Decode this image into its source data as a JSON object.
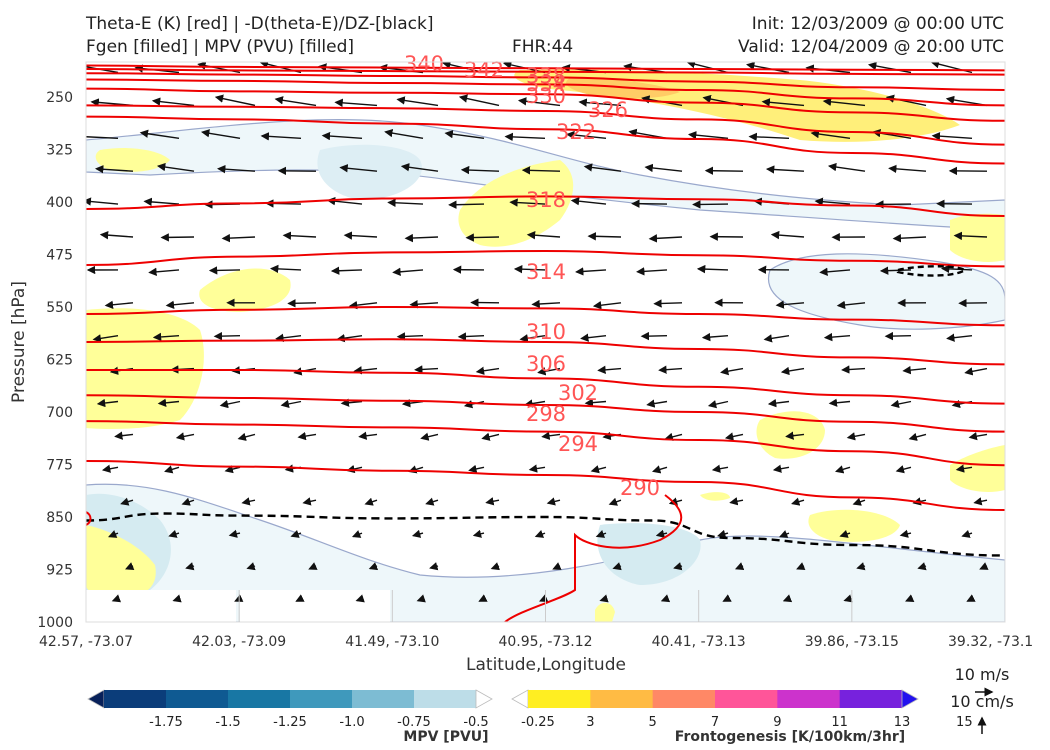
{
  "header": {
    "title_line1": "Theta-E (K) [red] | -D(theta-E)/DZ-[black]",
    "title_line2": "Fgen [filled] | MPV (PVU) [filled]",
    "fhr": "FHR:44",
    "init": "Init: 12/03/2009 @ 00:00 UTC",
    "valid": "Valid: 12/04/2009 @ 20:00 UTC"
  },
  "chart_data": {
    "type": "cross-section",
    "xlabel": "Latitude,Longitude",
    "ylabel": "Pressure [hPa]",
    "x_ticks": [
      "42.57, -73.07",
      "42.03, -73.09",
      "41.49, -73.10",
      "40.95, -73.12",
      "40.41, -73.13",
      "39.86, -73.15",
      "39.32, -73.1"
    ],
    "y_ticks": [
      250,
      325,
      400,
      475,
      550,
      625,
      700,
      775,
      850,
      925,
      1000
    ],
    "ylim": [
      1000,
      200
    ],
    "theta_e_contours": [
      {
        "label": "340",
        "pts": [
          [
            0,
            205
          ],
          [
            1,
            207
          ],
          [
            2,
            208
          ],
          [
            3,
            209
          ],
          [
            4,
            210
          ],
          [
            5,
            211
          ],
          [
            6,
            212
          ]
        ]
      },
      {
        "label": "342",
        "pts": [
          [
            0,
            210
          ],
          [
            1,
            212
          ],
          [
            2,
            213
          ],
          [
            3,
            214
          ],
          [
            4,
            215
          ],
          [
            5,
            217
          ],
          [
            6,
            218
          ]
        ]
      },
      {
        "label": "338",
        "pts": [
          [
            0,
            216
          ],
          [
            1,
            218
          ],
          [
            2,
            220
          ],
          [
            3,
            222
          ],
          [
            4,
            228
          ],
          [
            5,
            236
          ],
          [
            6,
            240
          ]
        ]
      },
      {
        "label": "334",
        "pts": [
          [
            0,
            225
          ],
          [
            1,
            227
          ],
          [
            2,
            230
          ],
          [
            3,
            232
          ],
          [
            4,
            240
          ],
          [
            5,
            252
          ],
          [
            6,
            262
          ]
        ]
      },
      {
        "label": "330",
        "pts": [
          [
            0,
            238
          ],
          [
            1,
            242
          ],
          [
            2,
            244
          ],
          [
            3,
            246
          ],
          [
            4,
            258
          ],
          [
            5,
            272
          ],
          [
            6,
            284
          ]
        ]
      },
      {
        "label": "326",
        "pts": [
          [
            0,
            262
          ],
          [
            1,
            264
          ],
          [
            2,
            266
          ],
          [
            3,
            270
          ],
          [
            4,
            282
          ],
          [
            5,
            300
          ],
          [
            6,
            318
          ]
        ]
      },
      {
        "label": "322",
        "pts": [
          [
            0,
            278
          ],
          [
            1,
            282
          ],
          [
            2,
            288
          ],
          [
            3,
            296
          ],
          [
            4,
            310
          ],
          [
            5,
            330
          ],
          [
            6,
            345
          ]
        ]
      },
      {
        "label": "318",
        "pts": [
          [
            0,
            410
          ],
          [
            1,
            402
          ],
          [
            2,
            395
          ],
          [
            3,
            392
          ],
          [
            4,
            396
          ],
          [
            5,
            405
          ],
          [
            6,
            420
          ]
        ]
      },
      {
        "label": "314",
        "pts": [
          [
            0,
            490
          ],
          [
            1,
            478
          ],
          [
            2,
            472
          ],
          [
            3,
            470
          ],
          [
            4,
            476
          ],
          [
            5,
            484
          ],
          [
            6,
            492
          ]
        ]
      },
      {
        "label": "310",
        "pts": [
          [
            0,
            560
          ],
          [
            1,
            554
          ],
          [
            2,
            550
          ],
          [
            3,
            552
          ],
          [
            4,
            560
          ],
          [
            5,
            568
          ],
          [
            6,
            576
          ]
        ]
      },
      {
        "label": "306",
        "pts": [
          [
            0,
            600
          ],
          [
            1,
            598
          ],
          [
            2,
            596
          ],
          [
            3,
            600
          ],
          [
            4,
            610
          ],
          [
            5,
            622
          ],
          [
            6,
            632
          ]
        ]
      },
      {
        "label": "302",
        "pts": [
          [
            0,
            640
          ],
          [
            1,
            640
          ],
          [
            2,
            644
          ],
          [
            3,
            652
          ],
          [
            4,
            664
          ],
          [
            5,
            676
          ],
          [
            6,
            688
          ]
        ]
      },
      {
        "label": "298",
        "pts": [
          [
            0,
            676
          ],
          [
            1,
            680
          ],
          [
            2,
            684
          ],
          [
            3,
            690
          ],
          [
            4,
            700
          ],
          [
            5,
            714
          ],
          [
            6,
            728
          ]
        ]
      },
      {
        "label": "294",
        "pts": [
          [
            0,
            713
          ],
          [
            1,
            718
          ],
          [
            2,
            722
          ],
          [
            3,
            728
          ],
          [
            4,
            740
          ],
          [
            5,
            756
          ],
          [
            6,
            776
          ]
        ]
      },
      {
        "label": "290",
        "pts": [
          [
            0,
            770
          ],
          [
            1,
            778
          ],
          [
            2,
            784
          ],
          [
            3,
            790
          ],
          [
            4,
            800
          ],
          [
            5,
            822
          ],
          [
            6,
            840
          ]
        ]
      }
    ],
    "dthetae_dz_dashed": [
      [
        0,
        855
      ],
      [
        0.5,
        845
      ],
      [
        1,
        848
      ],
      [
        2,
        852
      ],
      [
        3,
        850
      ],
      [
        3.7,
        855
      ],
      [
        4.2,
        880
      ],
      [
        5,
        890
      ],
      [
        6,
        905
      ]
    ],
    "mpv_colorbar": {
      "title": "MPV [PVU]",
      "ticks": [
        "-1.75",
        "-1.5",
        "-1.25",
        "-1.0",
        "-0.75",
        "-0.5",
        "-0.25"
      ],
      "colors": [
        "#08215a",
        "#0b3d7a",
        "#0f5a92",
        "#1877a4",
        "#3f99bc",
        "#7dbcd3",
        "#bddde8",
        "#ffffff"
      ]
    },
    "fgen_colorbar": {
      "title": "Frontogenesis [K/100km/3hr]",
      "ticks": [
        "3",
        "5",
        "7",
        "9",
        "11",
        "13",
        "15"
      ],
      "colors": [
        "#ffffff",
        "#ffee22",
        "#ffbb44",
        "#ff8866",
        "#ff5599",
        "#cc33cc",
        "#7722dd",
        "#2211ee"
      ]
    },
    "vector_key": {
      "h_label": "10 m/s",
      "v_label": "10 cm/s"
    }
  }
}
